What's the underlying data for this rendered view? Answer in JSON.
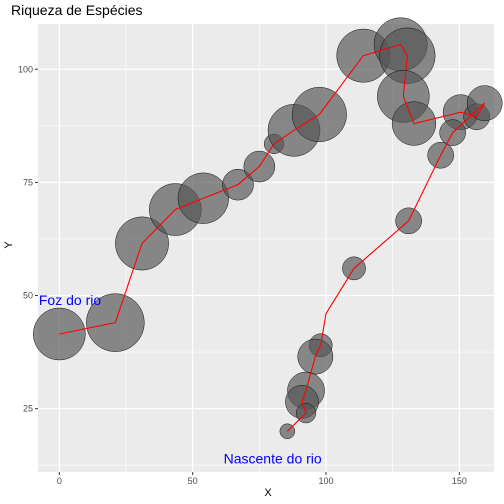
{
  "chart_data": {
    "type": "scatter",
    "title": "Riqueza de Espécies",
    "xlabel": "X",
    "ylabel": "Y",
    "xlim": [
      -8,
      163
    ],
    "ylim": [
      11,
      110
    ],
    "xticks": [
      0,
      50,
      100,
      150
    ],
    "yticks": [
      25,
      50,
      75,
      100
    ],
    "grid": true,
    "legend": "none",
    "colors": {
      "panel": "#ebebeb",
      "grid": "#ffffff",
      "points": "#555555",
      "point_stroke": "#111111",
      "path": "#ff0000",
      "annotation": "#0000ff"
    },
    "points": [
      {
        "x": 0,
        "y": 41.5,
        "richness": 19
      },
      {
        "x": 21,
        "y": 44,
        "richness": 24
      },
      {
        "x": 31,
        "y": 61.5,
        "richness": 20
      },
      {
        "x": 43.5,
        "y": 69,
        "richness": 19
      },
      {
        "x": 54,
        "y": 71.5,
        "richness": 18
      },
      {
        "x": 67,
        "y": 74.5,
        "richness": 6
      },
      {
        "x": 75,
        "y": 78.5,
        "richness": 6
      },
      {
        "x": 80.5,
        "y": 83.5,
        "richness": 2
      },
      {
        "x": 88,
        "y": 86.5,
        "richness": 19
      },
      {
        "x": 97.5,
        "y": 90,
        "richness": 21
      },
      {
        "x": 114,
        "y": 103,
        "richness": 20
      },
      {
        "x": 128,
        "y": 105.5,
        "richness": 20
      },
      {
        "x": 130.5,
        "y": 103,
        "richness": 22
      },
      {
        "x": 129,
        "y": 94,
        "richness": 19
      },
      {
        "x": 133,
        "y": 88,
        "richness": 13
      },
      {
        "x": 150.5,
        "y": 90.5,
        "richness": 8
      },
      {
        "x": 156.5,
        "y": 89.5,
        "richness": 4
      },
      {
        "x": 159.5,
        "y": 92.5,
        "richness": 8
      },
      {
        "x": 147.5,
        "y": 86,
        "richness": 4
      },
      {
        "x": 143,
        "y": 81,
        "richness": 4
      },
      {
        "x": 131,
        "y": 66.5,
        "richness": 4
      },
      {
        "x": 110.5,
        "y": 56,
        "richness": 3
      },
      {
        "x": 100,
        "y": 46,
        "richness": 0
      },
      {
        "x": 98,
        "y": 39,
        "richness": 3
      },
      {
        "x": 96,
        "y": 36.5,
        "richness": 8
      },
      {
        "x": 92.5,
        "y": 29,
        "richness": 9
      },
      {
        "x": 91,
        "y": 26.5,
        "richness": 7
      },
      {
        "x": 92.5,
        "y": 24,
        "richness": 2
      },
      {
        "x": 85.5,
        "y": 20,
        "richness": 1
      }
    ],
    "path_order": [
      0,
      1,
      2,
      3,
      4,
      5,
      6,
      7,
      8,
      9,
      10,
      11,
      12,
      13,
      14,
      15,
      16,
      17,
      18,
      19,
      20,
      21,
      22,
      23,
      24,
      25,
      26,
      27,
      28
    ],
    "annotations": [
      {
        "text": "Foz do rio",
        "x": 4,
        "y": 49
      },
      {
        "text": "Nascente do rio",
        "x": 80,
        "y": 14
      }
    ]
  }
}
